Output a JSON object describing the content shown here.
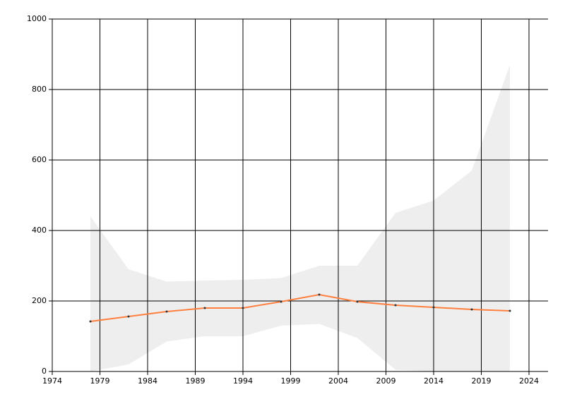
{
  "chart_data": {
    "type": "line",
    "x": [
      1978,
      1982,
      1986,
      1990,
      1994,
      1998,
      2002,
      2006,
      2010,
      2014,
      2018,
      2022
    ],
    "series": [
      {
        "color": "#ff7f3f",
        "marker_color": "#333333",
        "values": [
          142,
          156,
          170,
          180,
          180,
          198,
          218,
          198,
          188,
          182,
          176,
          172
        ],
        "band_color": "#eeeeee",
        "upper": [
          440,
          290,
          255,
          258,
          260,
          265,
          300,
          300,
          450,
          485,
          570,
          870
        ],
        "lower": [
          0,
          20,
          85,
          100,
          100,
          130,
          135,
          95,
          5,
          0,
          0,
          0
        ]
      }
    ],
    "xlim": [
      1974,
      2026
    ],
    "xticks": [
      1974,
      1979,
      1984,
      1989,
      1994,
      1999,
      2004,
      2009,
      2014,
      2019,
      2024
    ],
    "ylim": [
      0,
      1000
    ],
    "yticks": [
      0,
      200,
      400,
      600,
      800,
      1000
    ],
    "grid": true
  }
}
